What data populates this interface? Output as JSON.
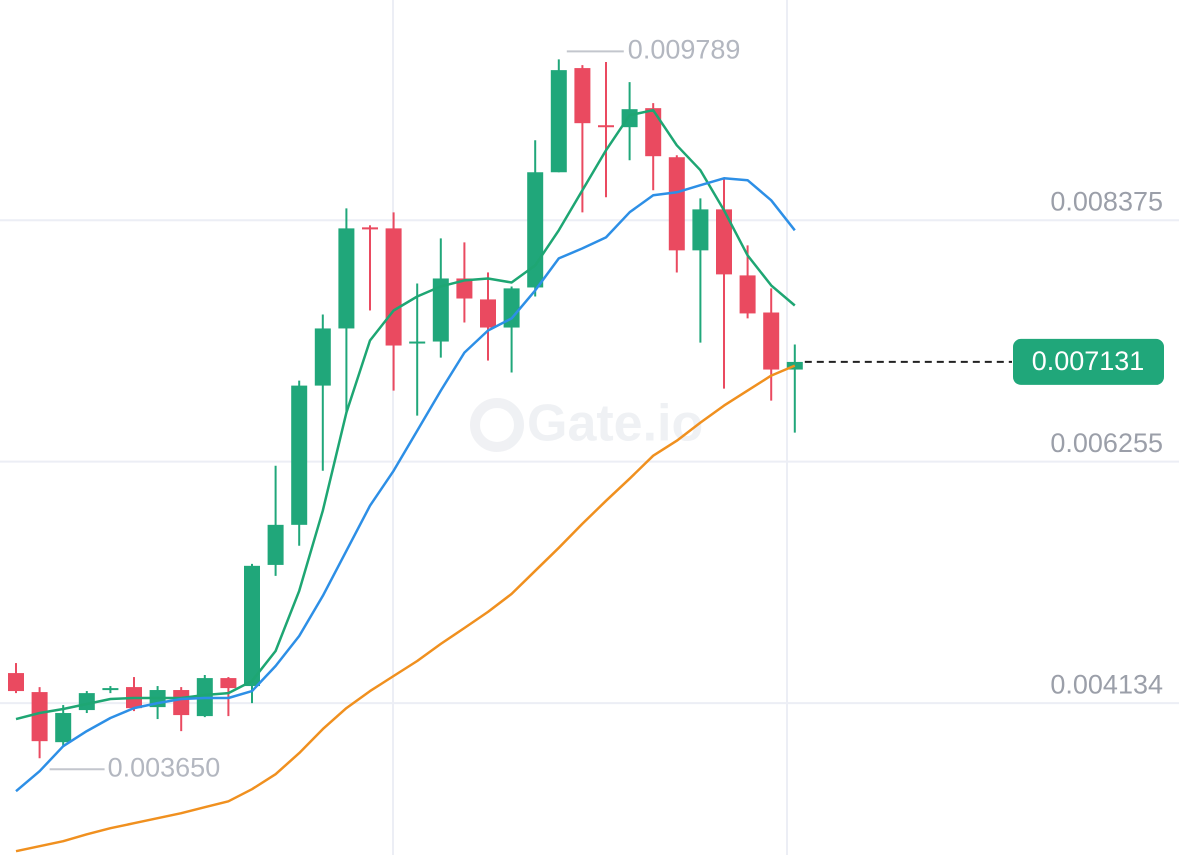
{
  "chart_data": {
    "type": "candlestick",
    "ylim": [
      0.0028,
      0.01031
    ],
    "yticks": [
      0.004134,
      0.006255,
      0.008375
    ],
    "grid": true,
    "up_color": "#20a77a",
    "down_color": "#ea4a60",
    "candles": {
      "open": [
        0.004398,
        0.004231,
        0.003791,
        0.004073,
        0.004249,
        0.004275,
        0.004099,
        0.004249,
        0.00402,
        0.004354,
        0.004284,
        0.005348,
        0.0057,
        0.006923,
        0.007425,
        0.008313,
        0.008304,
        0.007293,
        0.00731,
        0.007864,
        0.00768,
        0.007433,
        0.007785,
        0.008797,
        0.009712,
        0.00921,
        0.009193,
        0.00936,
        0.008929,
        0.008111,
        0.008471,
        0.007891,
        0.007565,
        0.007064
      ],
      "high": [
        0.004486,
        0.004275,
        0.004117,
        0.00424,
        0.004284,
        0.004363,
        0.004284,
        0.004275,
        0.004381,
        0.004363,
        0.005357,
        0.006219,
        0.006967,
        0.007548,
        0.00848,
        0.008331,
        0.008445,
        0.00782,
        0.008216,
        0.008181,
        0.007917,
        0.007794,
        0.009078,
        0.009789,
        0.009738,
        0.009765,
        0.009589,
        0.009404,
        0.008946,
        0.008568,
        0.008735,
        0.008155,
        0.007777,
        0.007284
      ],
      "low": [
        0.004222,
        0.00365,
        0.003756,
        0.004047,
        0.004222,
        0.004064,
        0.003994,
        0.003888,
        0.004011,
        0.00402,
        0.004134,
        0.005252,
        0.005516,
        0.006175,
        0.006677,
        0.007583,
        0.006879,
        0.006659,
        0.007169,
        0.007477,
        0.007143,
        0.007038,
        0.007706,
        0.008797,
        0.008445,
        0.008577,
        0.008902,
        0.008639,
        0.007917,
        0.007301,
        0.006897,
        0.007513,
        0.006791,
        0.00651
      ],
      "close": [
        0.00424,
        0.0038,
        0.004047,
        0.004222,
        0.004266,
        0.00409,
        0.004249,
        0.004029,
        0.004354,
        0.004266,
        0.00534,
        0.0057,
        0.006923,
        0.007425,
        0.008304,
        0.008295,
        0.007275,
        0.00731,
        0.007864,
        0.007688,
        0.007433,
        0.007777,
        0.008797,
        0.009694,
        0.009228,
        0.009193,
        0.009351,
        0.008938,
        0.008111,
        0.008471,
        0.0079,
        0.007557,
        0.007064,
        0.007131
      ]
    },
    "lines": [
      {
        "color": "#1ea673",
        "values": [
          0.003994,
          0.004047,
          0.004082,
          0.004126,
          0.00417,
          0.004179,
          0.004179,
          0.004179,
          0.004205,
          0.004222,
          0.004328,
          0.004592,
          0.00512,
          0.005824,
          0.006686,
          0.007319,
          0.007583,
          0.007706,
          0.007794,
          0.007847,
          0.007864,
          0.007829,
          0.007979,
          0.008287,
          0.008639,
          0.00899,
          0.009298,
          0.009342,
          0.009034,
          0.008815,
          0.008463,
          0.008067,
          0.007803,
          0.007627
        ]
      },
      {
        "color": "#2d8fe6",
        "values": [
          0.00336,
          0.003536,
          0.003756,
          0.003888,
          0.004003,
          0.00409,
          0.004134,
          0.00417,
          0.004179,
          0.004179,
          0.00424,
          0.00446,
          0.004724,
          0.005076,
          0.005472,
          0.005868,
          0.006175,
          0.006527,
          0.006879,
          0.007213,
          0.007407,
          0.007513,
          0.007759,
          0.00804,
          0.008128,
          0.008225,
          0.008445,
          0.008595,
          0.008621,
          0.008683,
          0.008744,
          0.008727,
          0.008551,
          0.008287
        ]
      },
      {
        "color": "#f0901f",
        "values": [
          0.002833,
          0.002877,
          0.002921,
          0.002982,
          0.003035,
          0.003079,
          0.003123,
          0.003167,
          0.00322,
          0.003272,
          0.003378,
          0.00351,
          0.003695,
          0.003906,
          0.00409,
          0.00424,
          0.004372,
          0.004504,
          0.004654,
          0.004794,
          0.004935,
          0.005093,
          0.005296,
          0.005498,
          0.005709,
          0.005911,
          0.006105,
          0.006307,
          0.006439,
          0.006598,
          0.006747,
          0.006879,
          0.007011,
          0.007099
        ]
      }
    ],
    "high_marker": 0.009789,
    "low_marker": {
      "value": 0.00365,
      "label": "0.003650"
    },
    "last_price": 0.007131,
    "watermark": "Gate.io"
  }
}
